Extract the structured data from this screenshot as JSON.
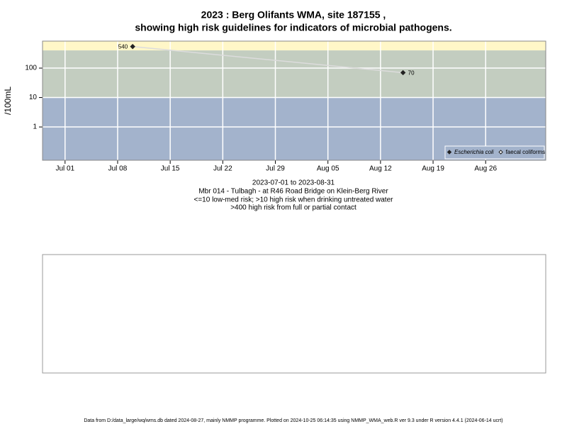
{
  "chart_data": {
    "type": "line",
    "title": [
      "2023 : Berg Olifants WMA, site 187155 ,",
      "showing high risk guidelines for indicators of microbial pathogens."
    ],
    "ylabel": "/100mL",
    "xlabel": [
      "2023-07-01 to 2023-08-31",
      "Mbr 014 - Tulbagh - at R46 Road Bridge on Klein-Berg River",
      "<=10 low-med risk; >10 high risk when drinking untreated water",
      ">400 high risk from full or partial contact"
    ],
    "x": [
      "2023-07-10",
      "2023-08-15"
    ],
    "series": [
      {
        "name": "Escherichia coli",
        "color": "#222222",
        "values": [
          540,
          70
        ]
      },
      {
        "name": "faecal coliforms",
        "color": "#222222",
        "values": [
          null,
          null
        ]
      }
    ],
    "line_color": "#dcdcdc",
    "thresholds": [
      10,
      400
    ],
    "band_colors": [
      "#a3b3cc",
      "#c3cdc0",
      "#fff7c8"
    ],
    "log_y": true,
    "ylim": [
      0.074,
      825
    ],
    "yticks": [
      1,
      10,
      100
    ],
    "xlim": [
      "2023-06-28",
      "2023-09-03"
    ],
    "xticks": [
      {
        "value": "2023-07-01",
        "label": "Jul 01"
      },
      {
        "value": "2023-07-08",
        "label": "Jul 08"
      },
      {
        "value": "2023-07-15",
        "label": "Jul 15"
      },
      {
        "value": "2023-07-22",
        "label": "Jul 22"
      },
      {
        "value": "2023-07-29",
        "label": "Jul 29"
      },
      {
        "value": "2023-08-05",
        "label": "Aug 05"
      },
      {
        "value": "2023-08-12",
        "label": "Aug 12"
      },
      {
        "value": "2023-08-19",
        "label": "Aug 19"
      },
      {
        "value": "2023-08-26",
        "label": "Aug 26"
      }
    ],
    "grid": true,
    "legend": "bottom-right",
    "footer": "Data from D:/data_large/wq/wms.db dated 2024-08-27, mainly NMMP programme. Plotted on 2024-10-25 06:14:35 using NMMP_WMA_web.R ver 9.3 under R version 4.4.1 (2024-06-14 ucrt)"
  }
}
